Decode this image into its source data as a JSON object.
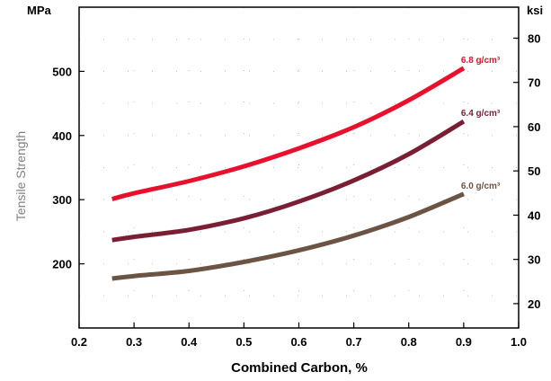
{
  "chart_data": {
    "type": "line",
    "xlabel": "Combined Carbon, %",
    "ylabel": "Tensile Strength",
    "y_unit_left": "MPa",
    "y_unit_right": "ksi",
    "xlim": [
      0.2,
      1.0
    ],
    "ylim": [
      100,
      600
    ],
    "y2lim": [
      14.5,
      87.0
    ],
    "x_ticks": [
      0.2,
      0.3,
      0.4,
      0.5,
      0.6,
      0.7,
      0.8,
      0.9,
      1.0
    ],
    "x_tick_labels": [
      "0.2",
      "0.3",
      "0.4",
      "0.5",
      "0.6",
      "0.7",
      "0.8",
      "0.9",
      "1.0"
    ],
    "y_ticks": [
      200,
      300,
      400,
      500
    ],
    "y_tick_labels": [
      "200",
      "300",
      "400",
      "500"
    ],
    "y2_ticks": [
      20,
      30,
      40,
      50,
      60,
      70,
      80
    ],
    "y2_tick_labels": [
      "20",
      "30",
      "40",
      "50",
      "60",
      "70",
      "80"
    ],
    "grid": "dotted",
    "series": [
      {
        "name": "6.8 g/cm³",
        "color": "#e8112d",
        "x": [
          0.26,
          0.3,
          0.4,
          0.5,
          0.6,
          0.7,
          0.8,
          0.9
        ],
        "values": [
          301,
          310,
          329,
          352,
          380,
          413,
          455,
          505
        ]
      },
      {
        "name": "6.4 g/cm³",
        "color": "#7a1f33",
        "x": [
          0.26,
          0.3,
          0.4,
          0.5,
          0.6,
          0.7,
          0.8,
          0.9
        ],
        "values": [
          237,
          242,
          253,
          271,
          297,
          330,
          371,
          422
        ]
      },
      {
        "name": "6.0 g/cm³",
        "color": "#6b5444",
        "x": [
          0.26,
          0.3,
          0.4,
          0.5,
          0.6,
          0.7,
          0.8,
          0.9
        ],
        "values": [
          177,
          181,
          189,
          203,
          221,
          244,
          273,
          309
        ]
      }
    ]
  }
}
